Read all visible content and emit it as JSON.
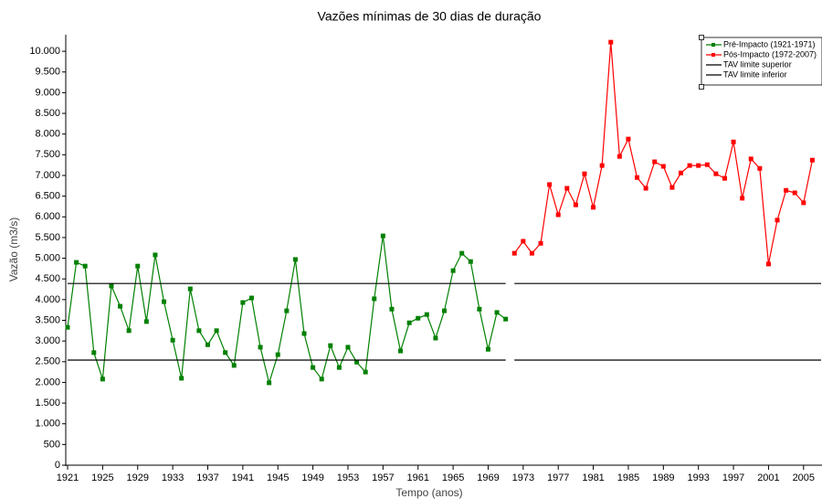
{
  "chart_data": {
    "type": "line",
    "title": "Vazões mínimas de 30 dias de duração",
    "x_label": "Tempo (anos)",
    "y_label": "Vazão (m3/s)",
    "xlim": [
      1921,
      2007
    ],
    "xticks": [
      1921,
      1925,
      1929,
      1933,
      1937,
      1941,
      1945,
      1949,
      1953,
      1957,
      1961,
      1965,
      1969,
      1973,
      1977,
      1981,
      1985,
      1989,
      1993,
      1997,
      2001,
      2005
    ],
    "ylim": [
      0,
      10400
    ],
    "yticks": [
      0,
      500,
      {
        "value": 1000,
        "label": "1.000"
      },
      {
        "value": 1500,
        "label": "1.500"
      },
      {
        "value": 2000,
        "label": "2.000"
      },
      {
        "value": 2500,
        "label": "2.500"
      },
      {
        "value": 3000,
        "label": "3.000"
      },
      {
        "value": 3500,
        "label": "3.500"
      },
      {
        "value": 4000,
        "label": "4.000"
      },
      {
        "value": 4500,
        "label": "4.500"
      },
      {
        "value": 5000,
        "label": "5.000"
      },
      {
        "value": 5500,
        "label": "5.500"
      },
      {
        "value": 6000,
        "label": "6.000"
      },
      {
        "value": 6500,
        "label": "6.500"
      },
      {
        "value": 7000,
        "label": "7.000"
      },
      {
        "value": 7500,
        "label": "7.500"
      },
      {
        "value": 8000,
        "label": "8.000"
      },
      {
        "value": 8500,
        "label": "8.500"
      },
      {
        "value": 9000,
        "label": "9.000"
      },
      {
        "value": 9500,
        "label": "9.500"
      },
      {
        "value": 10000,
        "label": "10.000"
      }
    ],
    "legend": "upper right",
    "series": [
      {
        "name": "Pré-Impacto (1921-1971)",
        "color": "#008000",
        "markers": true,
        "x": [
          1921,
          1922,
          1923,
          1924,
          1925,
          1926,
          1927,
          1928,
          1929,
          1930,
          1931,
          1932,
          1933,
          1934,
          1935,
          1936,
          1937,
          1938,
          1939,
          1940,
          1941,
          1942,
          1943,
          1944,
          1945,
          1946,
          1947,
          1948,
          1949,
          1950,
          1951,
          1952,
          1953,
          1954,
          1955,
          1956,
          1957,
          1958,
          1959,
          1960,
          1961,
          1962,
          1963,
          1964,
          1965,
          1966,
          1967,
          1968,
          1969,
          1970,
          1971
        ],
        "values": [
          3330,
          4900,
          4810,
          2720,
          2080,
          4330,
          3840,
          3250,
          4810,
          3470,
          5080,
          3950,
          3020,
          2100,
          4260,
          3250,
          2910,
          3250,
          2720,
          2410,
          3930,
          4040,
          2850,
          1990,
          2670,
          3730,
          4970,
          3180,
          2360,
          2080,
          2890,
          2360,
          2850,
          2490,
          2250,
          4020,
          5540,
          3770,
          2760,
          3440,
          3550,
          3640,
          3070,
          3730,
          4700,
          5120,
          4920,
          3770,
          2800,
          3690,
          3530
        ]
      },
      {
        "name": "Pós-Impacto (1972-2007)",
        "color": "#ff0000",
        "markers": true,
        "x": [
          1972,
          1973,
          1974,
          1975,
          1976,
          1977,
          1978,
          1979,
          1980,
          1981,
          1982,
          1983,
          1984,
          1985,
          1986,
          1987,
          1988,
          1989,
          1990,
          1991,
          1992,
          1993,
          1994,
          1995,
          1996,
          1997,
          1998,
          1999,
          2000,
          2001,
          2002,
          2003,
          2004,
          2005,
          2006
        ],
        "values": [
          5120,
          5410,
          5120,
          5360,
          6780,
          6050,
          6690,
          6290,
          7040,
          6230,
          7240,
          10220,
          7460,
          7880,
          6950,
          6690,
          7330,
          7220,
          6710,
          7060,
          7240,
          7240,
          7260,
          7040,
          6930,
          7810,
          6450,
          7400,
          7170,
          4860,
          5920,
          6640,
          6580,
          6340,
          7370
        ]
      },
      {
        "name": "TAV limite superior",
        "color": "#000000",
        "markers": false,
        "x": [
          1921,
          1971,
          null,
          1972,
          2007
        ],
        "values": [
          4390,
          4390,
          null,
          4390,
          4390
        ]
      },
      {
        "name": "TAV limite inferior",
        "color": "#000000",
        "markers": false,
        "x": [
          1921,
          1971,
          null,
          1972,
          2007
        ],
        "values": [
          2540,
          2540,
          null,
          2540,
          2540
        ]
      }
    ]
  }
}
